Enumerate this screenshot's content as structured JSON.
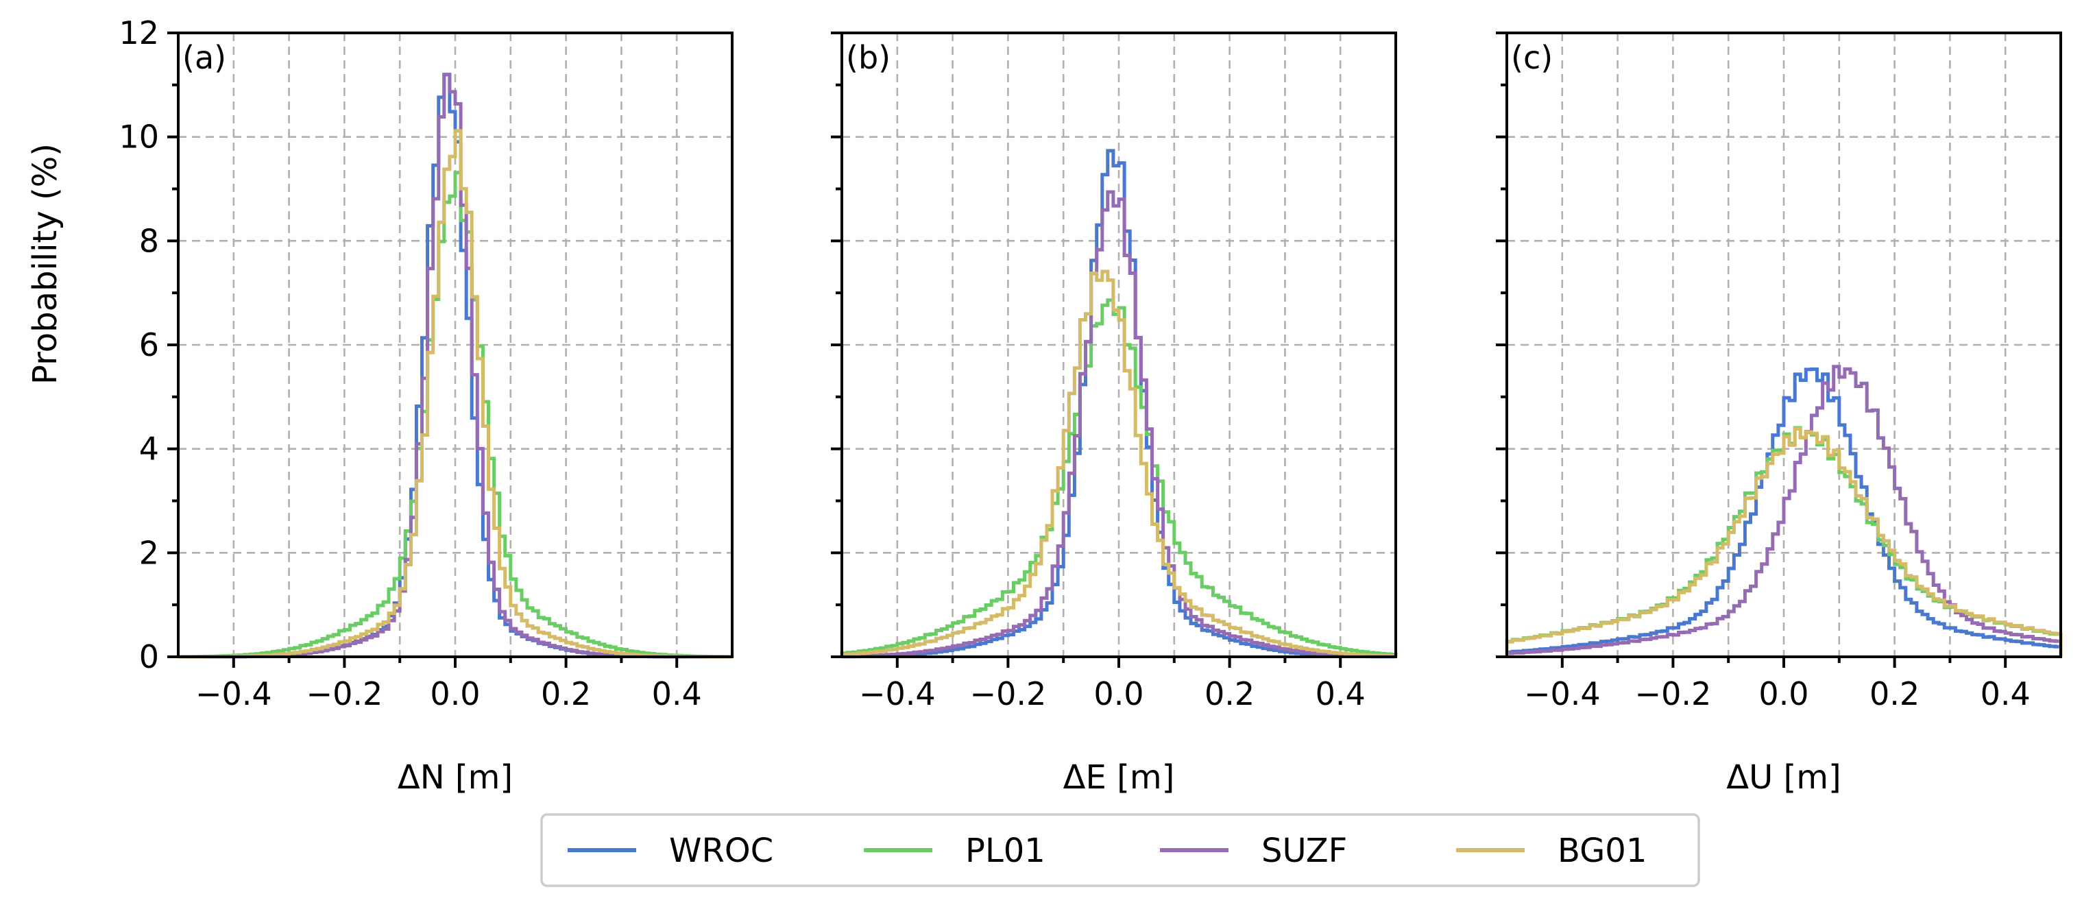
{
  "chart_data": {
    "type": "histogram-step",
    "ylabel": "Probability (%)",
    "ylim": [
      0,
      12
    ],
    "yticks": [
      0,
      2,
      4,
      6,
      8,
      10,
      12
    ],
    "xlim": [
      -0.5,
      0.5
    ],
    "xticks": [
      -0.4,
      -0.2,
      0.0,
      0.2,
      0.4
    ],
    "xtick_labels": [
      "−0.4",
      "−0.2",
      "0.0",
      "0.2",
      "0.4"
    ],
    "ytick_labels": [
      "0",
      "2",
      "4",
      "6",
      "8",
      "10",
      "12"
    ],
    "grid": true,
    "legend": {
      "placement": "bottom-center",
      "entries": [
        {
          "name": "WROC",
          "color": "#4878d0"
        },
        {
          "name": "PL01",
          "color": "#6acc64"
        },
        {
          "name": "SUZF",
          "color": "#956cb4"
        },
        {
          "name": "BG01",
          "color": "#d5bb67"
        }
      ]
    },
    "panels": [
      {
        "tag": "(a)",
        "xlabel": "ΔN [m]",
        "series": [
          {
            "name": "WROC",
            "mean": -0.015,
            "sigma": 0.036,
            "peak": 11.1,
            "tail": 0.8
          },
          {
            "name": "PL01",
            "mean": 0.0,
            "sigma": 0.044,
            "peak": 9.1,
            "tail": 1.4
          },
          {
            "name": "SUZF",
            "mean": -0.01,
            "sigma": 0.036,
            "peak": 11.2,
            "tail": 0.8
          },
          {
            "name": "BG01",
            "mean": 0.0,
            "sigma": 0.04,
            "peak": 9.9,
            "tail": 1.0
          }
        ]
      },
      {
        "tag": "(b)",
        "xlabel": "ΔE [m]",
        "series": [
          {
            "name": "WROC",
            "mean": -0.01,
            "sigma": 0.045,
            "peak": 9.7,
            "tail": 1.0
          },
          {
            "name": "PL01",
            "mean": -0.015,
            "sigma": 0.058,
            "peak": 6.8,
            "tail": 2.0
          },
          {
            "name": "SUZF",
            "mean": -0.01,
            "sigma": 0.05,
            "peak": 8.9,
            "tail": 1.0
          },
          {
            "name": "BG01",
            "mean": -0.03,
            "sigma": 0.055,
            "peak": 7.4,
            "tail": 1.4
          }
        ]
      },
      {
        "tag": "(c)",
        "xlabel": "ΔU [m]",
        "series": [
          {
            "name": "WROC",
            "mean": 0.05,
            "sigma": 0.082,
            "peak": 5.5,
            "tail": 0.8
          },
          {
            "name": "PL01",
            "mean": 0.035,
            "sigma": 0.1,
            "peak": 4.3,
            "tail": 1.2
          },
          {
            "name": "SUZF",
            "mean": 0.11,
            "sigma": 0.085,
            "peak": 5.5,
            "tail": 0.8
          },
          {
            "name": "BG01",
            "mean": 0.04,
            "sigma": 0.1,
            "peak": 4.3,
            "tail": 1.2
          }
        ]
      }
    ]
  }
}
